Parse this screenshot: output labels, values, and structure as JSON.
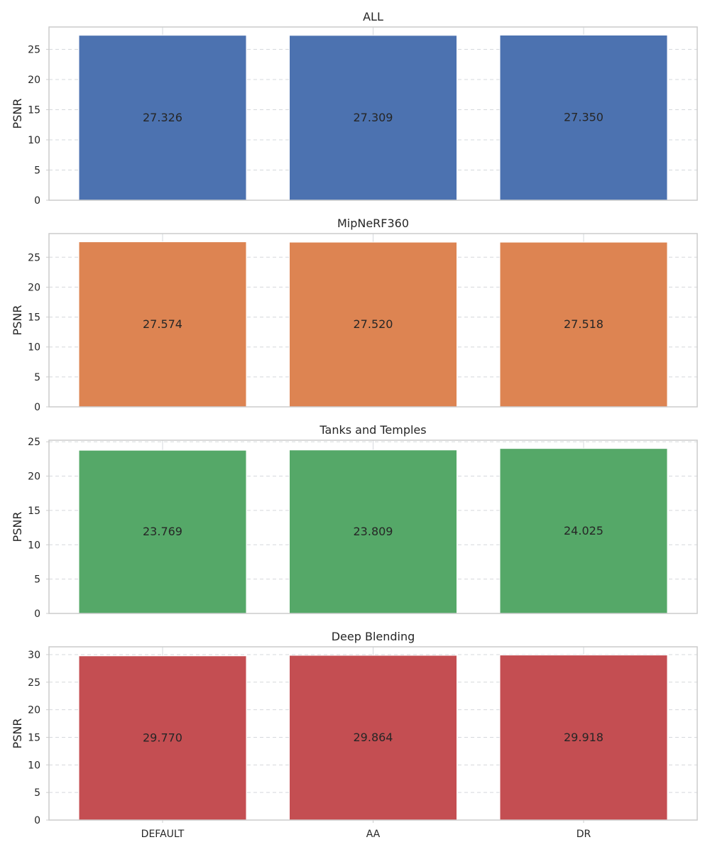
{
  "chart_data": [
    {
      "type": "bar",
      "title": "ALL",
      "ylabel": "PSNR",
      "categories": [
        "DEFAULT",
        "AA",
        "DR"
      ],
      "values": [
        27.326,
        27.309,
        27.35
      ],
      "value_labels": [
        "27.326",
        "27.309",
        "27.350"
      ],
      "ylim": [
        0,
        28.7
      ],
      "yticks": [
        0,
        5,
        10,
        15,
        20,
        25
      ],
      "color": "#4c72b0",
      "grid": "y-dashed",
      "show_xticklabels": false
    },
    {
      "type": "bar",
      "title": "MipNeRF360",
      "ylabel": "PSNR",
      "categories": [
        "DEFAULT",
        "AA",
        "DR"
      ],
      "values": [
        27.574,
        27.52,
        27.518
      ],
      "value_labels": [
        "27.574",
        "27.520",
        "27.518"
      ],
      "ylim": [
        0,
        28.95
      ],
      "yticks": [
        0,
        5,
        10,
        15,
        20,
        25
      ],
      "color": "#dd8452",
      "grid": "y-dashed",
      "show_xticklabels": false
    },
    {
      "type": "bar",
      "title": "Tanks and Temples",
      "ylabel": "PSNR",
      "categories": [
        "DEFAULT",
        "AA",
        "DR"
      ],
      "values": [
        23.769,
        23.809,
        24.025
      ],
      "value_labels": [
        "23.769",
        "23.809",
        "24.025"
      ],
      "ylim": [
        0,
        25.23
      ],
      "yticks": [
        0,
        5,
        10,
        15,
        20,
        25
      ],
      "color": "#55a868",
      "grid": "y-dashed",
      "show_xticklabels": false
    },
    {
      "type": "bar",
      "title": "Deep Blending",
      "ylabel": "PSNR",
      "categories": [
        "DEFAULT",
        "AA",
        "DR"
      ],
      "values": [
        29.77,
        29.864,
        29.918
      ],
      "value_labels": [
        "29.770",
        "29.864",
        "29.918"
      ],
      "ylim": [
        0,
        31.41
      ],
      "yticks": [
        0,
        5,
        10,
        15,
        20,
        25,
        30
      ],
      "color": "#c44e52",
      "grid": "y-dashed",
      "show_xticklabels": true
    }
  ]
}
